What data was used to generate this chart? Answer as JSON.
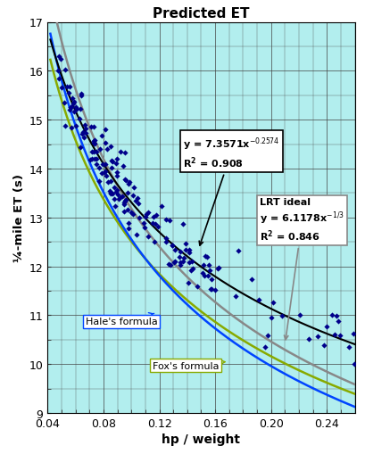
{
  "title": "Predicted ET",
  "xlabel": "hp / weight",
  "ylabel": "¼-mile ET (s)",
  "xlim": [
    0.04,
    0.26
  ],
  "ylim": [
    9,
    17
  ],
  "xticks": [
    0.04,
    0.08,
    0.12,
    0.16,
    0.2,
    0.24
  ],
  "yticks": [
    9,
    10,
    11,
    12,
    13,
    14,
    15,
    16,
    17
  ],
  "bg_color": "#b2eeee",
  "scatter_color": "#00008B",
  "power_fit_color": "#000000",
  "lrt_color": "#888888",
  "hale_color": "#0044ff",
  "fox_color": "#88aa00",
  "power_a": 7.3571,
  "power_b": -0.2574,
  "lrt_a": 6.1178,
  "lrt_b": -0.33333,
  "hale_a": 5.825,
  "hale_b": -0.33333,
  "fox_a": 6.269,
  "fox_b": -0.3
}
